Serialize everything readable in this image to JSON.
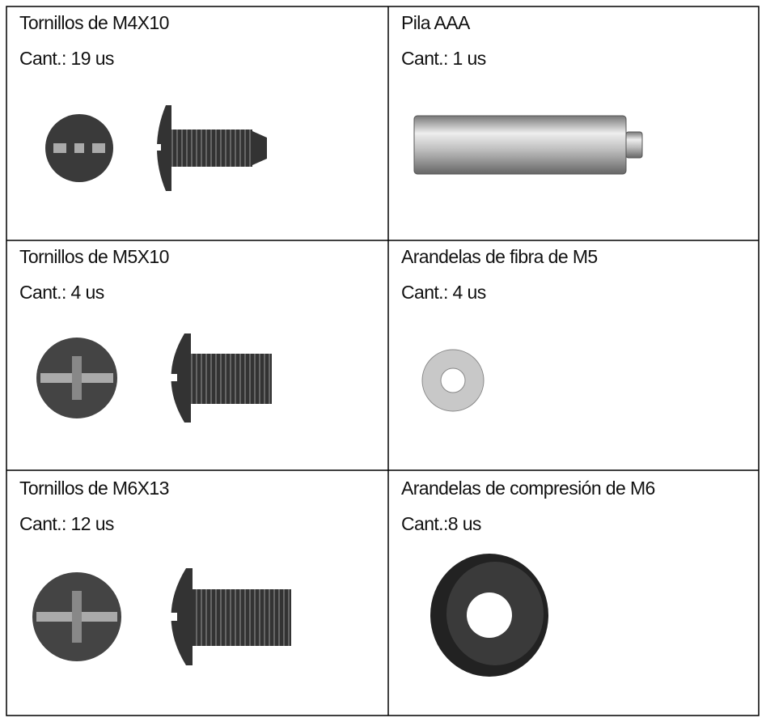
{
  "table": {
    "rows": [
      [
        {
          "name": "Tornillos de M4X10",
          "qty": "Cant.: 19 us"
        },
        {
          "name": "Pila AAA",
          "qty": "Cant.: 1 us"
        }
      ],
      [
        {
          "name": "Tornillos de M5X10",
          "qty": "Cant.: 4 us"
        },
        {
          "name": "Arandelas de fibra de M5",
          "qty": "Cant.: 4 us"
        }
      ],
      [
        {
          "name": "Tornillos de M6X13",
          "qty": "Cant.: 12 us"
        },
        {
          "name": "Arandelas de compresión de M6",
          "qty": "Cant.:8 us"
        }
      ]
    ]
  }
}
